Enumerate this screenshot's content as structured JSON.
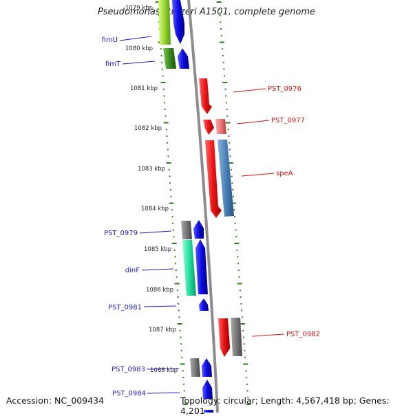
{
  "title": "Pseudomonas stutzeri A1501, complete genome",
  "accession": "Accession: NC_009434",
  "topology": "Topology: circular; Length: 4,567,418 bp; Genes: 4,201",
  "ticks": [
    "1079 kbp",
    "1080 kbp",
    "1081 kbp",
    "1082 kbp",
    "1083 kbp",
    "1084 kbp",
    "1085 kbp",
    "1086 kbp",
    "1087 kbp",
    "1088 kbp"
  ],
  "labels_left": [
    {
      "text": "fimU",
      "color": "#1a1acd"
    },
    {
      "text": "fimT",
      "color": "#1a1acd"
    },
    {
      "text": "PST_0979",
      "color": "#1a1acd"
    },
    {
      "text": "dinF",
      "color": "#1a1acd"
    },
    {
      "text": "PST_0981",
      "color": "#1a1acd"
    },
    {
      "text": "PST_0983",
      "color": "#1a1acd"
    },
    {
      "text": "PST_0984",
      "color": "#1a1acd"
    }
  ],
  "labels_right": [
    {
      "text": "PST_0976",
      "color": "#dd1111"
    },
    {
      "text": "PST_0977",
      "color": "#dd1111"
    },
    {
      "text": "speA",
      "color": "#dd1111"
    },
    {
      "text": "PST_0982",
      "color": "#dd1111"
    }
  ],
  "colors": {
    "backbone": "#8c8c8c",
    "tick": "#2e7d1e",
    "forward_gene": "#0a0ae6",
    "reverse_gene": "#ee1111",
    "grey_gene": "#7a7a7a",
    "steelblue_gene": "#4a82bb",
    "pink_gene": "#ee7777",
    "green_gene": "#9ad631",
    "darkgreen_gene": "#3a8c1e",
    "teal_gene": "#22e0a0"
  }
}
